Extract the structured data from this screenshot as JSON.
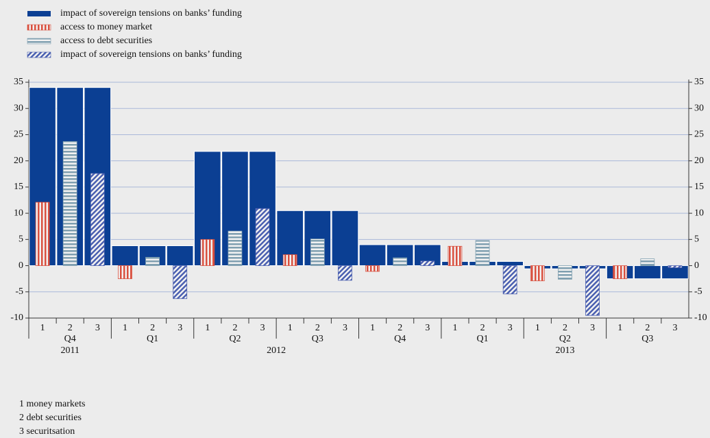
{
  "chart_data": {
    "type": "bar",
    "categories": [
      "1",
      "2",
      "3",
      "1",
      "2",
      "3",
      "1",
      "2",
      "3",
      "1",
      "2",
      "3",
      "1",
      "2",
      "3",
      "1",
      "2",
      "3",
      "1",
      "2",
      "3",
      "1",
      "2",
      "3"
    ],
    "quarters": [
      "Q4",
      "Q1",
      "Q2",
      "Q3",
      "Q4",
      "Q1",
      "Q2",
      "Q3"
    ],
    "years": [
      "2011",
      "2012",
      null,
      null,
      null,
      "2013",
      null,
      null
    ],
    "series": [
      {
        "name": "impact of sovereign tensions on banks’ funding",
        "color": "#0b3f93",
        "values": [
          34,
          34,
          34,
          3.8,
          3.8,
          3.8,
          21.8,
          21.8,
          21.8,
          10.5,
          10.5,
          10.5,
          4.0,
          4.0,
          4.0,
          0.8,
          0.8,
          0.8,
          -0.6,
          -0.6,
          -0.6,
          -2.5,
          -2.5,
          -2.5
        ]
      },
      {
        "name": "access to money market",
        "color": "#d9503f",
        "pattern": "vertical",
        "values": [
          12.1,
          null,
          null,
          -2.5,
          null,
          null,
          5.0,
          null,
          null,
          2.1,
          null,
          null,
          -1.1,
          null,
          null,
          3.7,
          null,
          null,
          -2.9,
          null,
          null,
          -2.5,
          null,
          null
        ]
      },
      {
        "name": "access to debt securities",
        "color": "#7f9fb0",
        "pattern": "horizontal",
        "values": [
          null,
          23.7,
          null,
          null,
          1.6,
          null,
          null,
          6.6,
          null,
          null,
          5.1,
          null,
          null,
          1.5,
          null,
          null,
          4.8,
          null,
          null,
          -2.6,
          null,
          null,
          1.3,
          null
        ]
      },
      {
        "name": "impact of sovereign tensions on banks’ funding",
        "color": "#4a5fb0",
        "pattern": "diagonal",
        "values": [
          null,
          null,
          17.6,
          null,
          null,
          -6.3,
          null,
          null,
          10.9,
          null,
          null,
          -2.8,
          null,
          null,
          0.9,
          null,
          null,
          -5.4,
          null,
          null,
          -9.5,
          null,
          null,
          -0.4
        ]
      }
    ],
    "ylim": [
      -10,
      35
    ],
    "yticks": [
      -10,
      -5,
      0,
      5,
      10,
      15,
      20,
      25,
      30,
      35
    ],
    "grid": true,
    "footnotes": [
      "1 money markets",
      "2 debt securities",
      "3 securitsation"
    ]
  }
}
